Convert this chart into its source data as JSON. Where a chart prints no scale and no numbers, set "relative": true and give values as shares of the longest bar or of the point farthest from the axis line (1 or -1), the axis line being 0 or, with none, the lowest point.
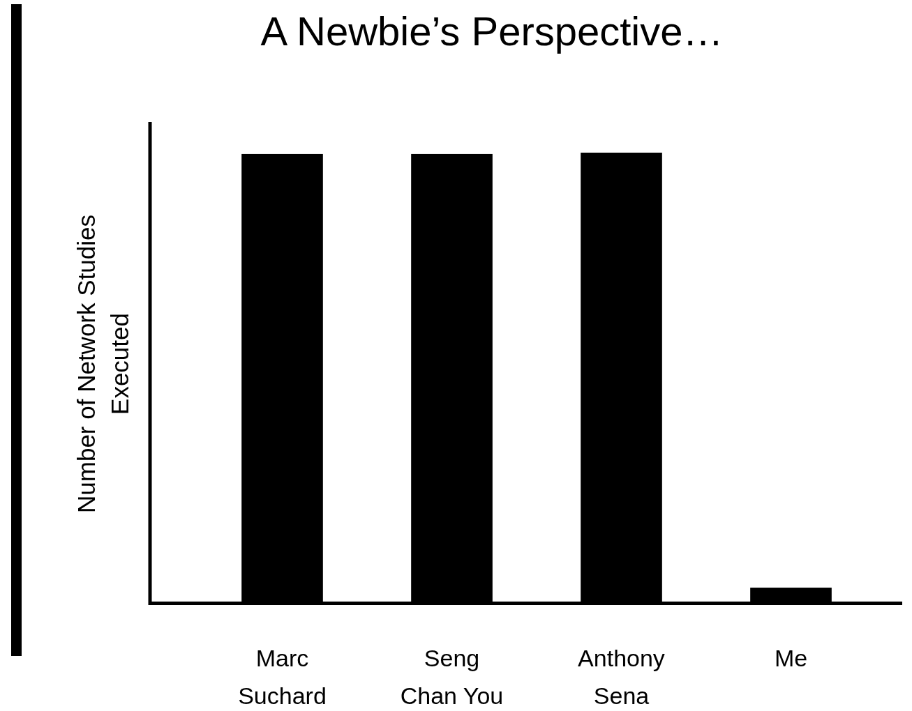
{
  "chart_data": {
    "type": "bar",
    "title": "A Newbie’s Perspective…",
    "ylabel": "Number of Network Studies Executed",
    "categories": [
      "Marc Suchard",
      "Seng Chan You",
      "Anthony Sena",
      "Me"
    ],
    "values": [
      0.997,
      0.997,
      1,
      0.031
    ],
    "color": "#000000",
    "relative": true,
    "tick_labels": "x"
  }
}
